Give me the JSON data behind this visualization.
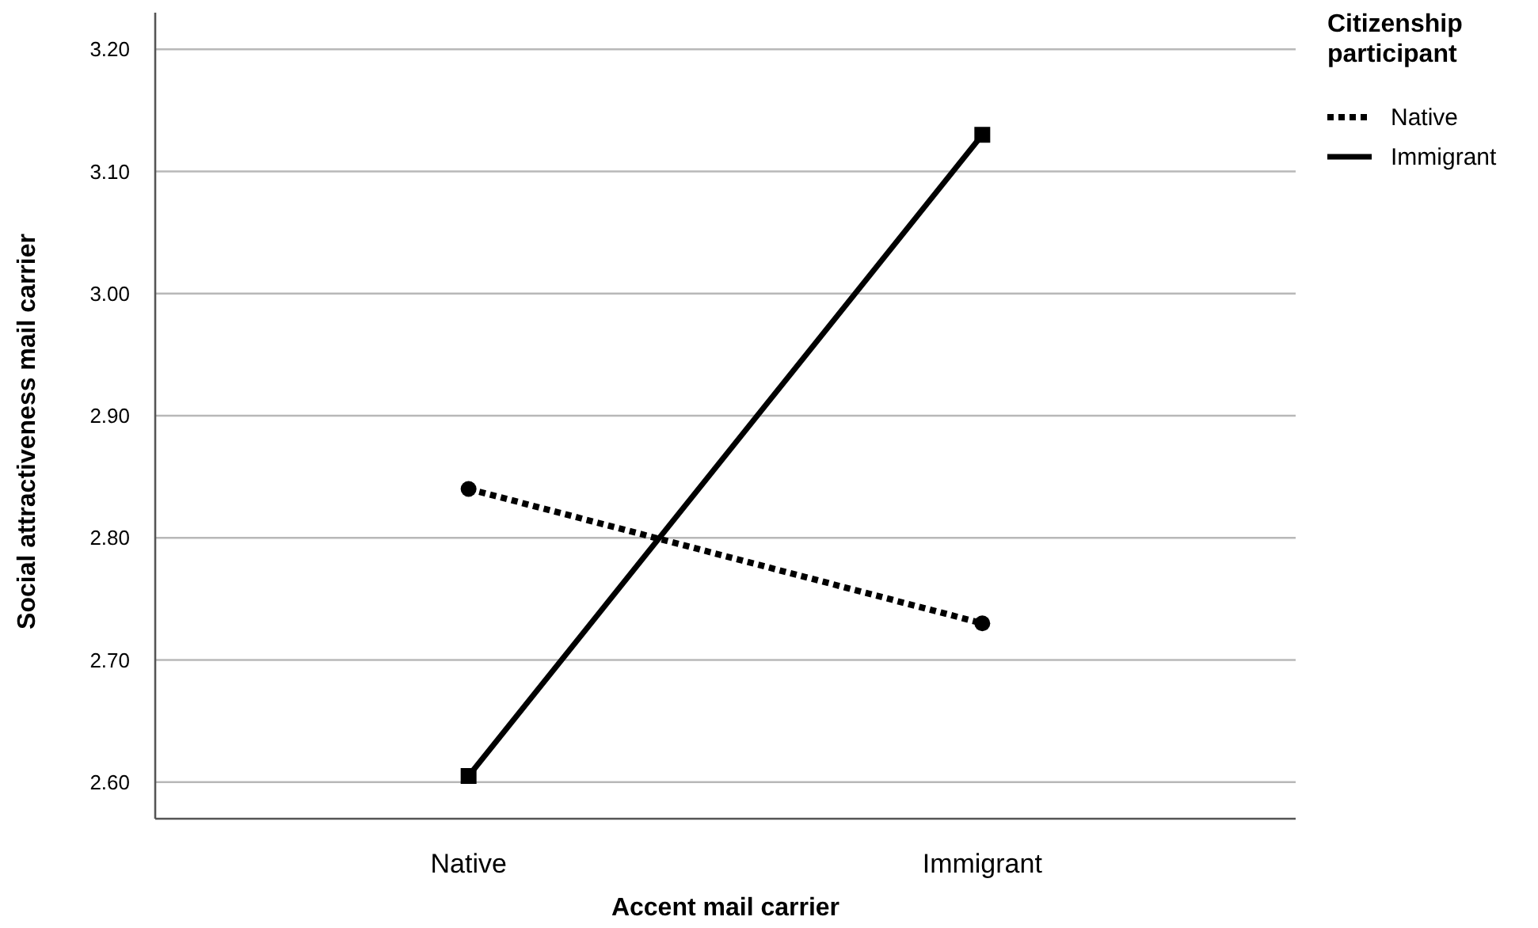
{
  "chart_data": {
    "type": "line",
    "xlabel": "Accent mail carrier",
    "ylabel": "Social attractiveness mail carrier",
    "legend_title": "Citizenship participant",
    "categories": [
      "Native",
      "Immigrant"
    ],
    "series": [
      {
        "name": "Native",
        "color": "#000000",
        "values": [
          2.84,
          2.73
        ],
        "line_style": "dotted",
        "marker": "circle"
      },
      {
        "name": "Immigrant",
        "color": "#000000",
        "values": [
          2.605,
          3.13
        ],
        "line_style": "solid",
        "marker": "square"
      }
    ],
    "ylim": [
      2.57,
      3.23
    ],
    "yticks": [
      {
        "value": 2.6,
        "label": "2.60"
      },
      {
        "value": 2.7,
        "label": "2.70"
      },
      {
        "value": 2.8,
        "label": "2.80"
      },
      {
        "value": 2.9,
        "label": "2.90"
      },
      {
        "value": 3.0,
        "label": "3.00"
      },
      {
        "value": 3.1,
        "label": "3.10"
      },
      {
        "value": 3.2,
        "label": "3.20"
      }
    ],
    "grid": "y",
    "legend": "top right"
  }
}
